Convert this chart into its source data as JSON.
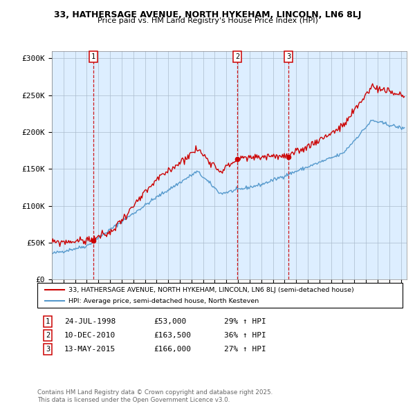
{
  "title1": "33, HATHERSAGE AVENUE, NORTH HYKEHAM, LINCOLN, LN6 8LJ",
  "title2": "Price paid vs. HM Land Registry's House Price Index (HPI)",
  "ylabel_ticks": [
    "£0",
    "£50K",
    "£100K",
    "£150K",
    "£200K",
    "£250K",
    "£300K"
  ],
  "ytick_values": [
    0,
    50000,
    100000,
    150000,
    200000,
    250000,
    300000
  ],
  "ylim": [
    0,
    310000
  ],
  "xlim_start": 1995.0,
  "xlim_end": 2025.5,
  "sale_color": "#cc0000",
  "hpi_color": "#5599cc",
  "plot_bg_color": "#ddeeff",
  "sale_label": "33, HATHERSAGE AVENUE, NORTH HYKEHAM, LINCOLN, LN6 8LJ (semi-detached house)",
  "hpi_label": "HPI: Average price, semi-detached house, North Kesteven",
  "transactions": [
    {
      "id": 1,
      "date": "24-JUL-1998",
      "price": 53000,
      "pct": "29%",
      "year": 1998.56
    },
    {
      "id": 2,
      "date": "10-DEC-2010",
      "price": 163500,
      "pct": "36%",
      "year": 2010.94
    },
    {
      "id": 3,
      "date": "13-MAY-2015",
      "price": 166000,
      "pct": "27%",
      "year": 2015.36
    }
  ],
  "footnote1": "Contains HM Land Registry data © Crown copyright and database right 2025.",
  "footnote2": "This data is licensed under the Open Government Licence v3.0.",
  "bg_color": "#ffffff",
  "grid_color": "#aabbcc"
}
